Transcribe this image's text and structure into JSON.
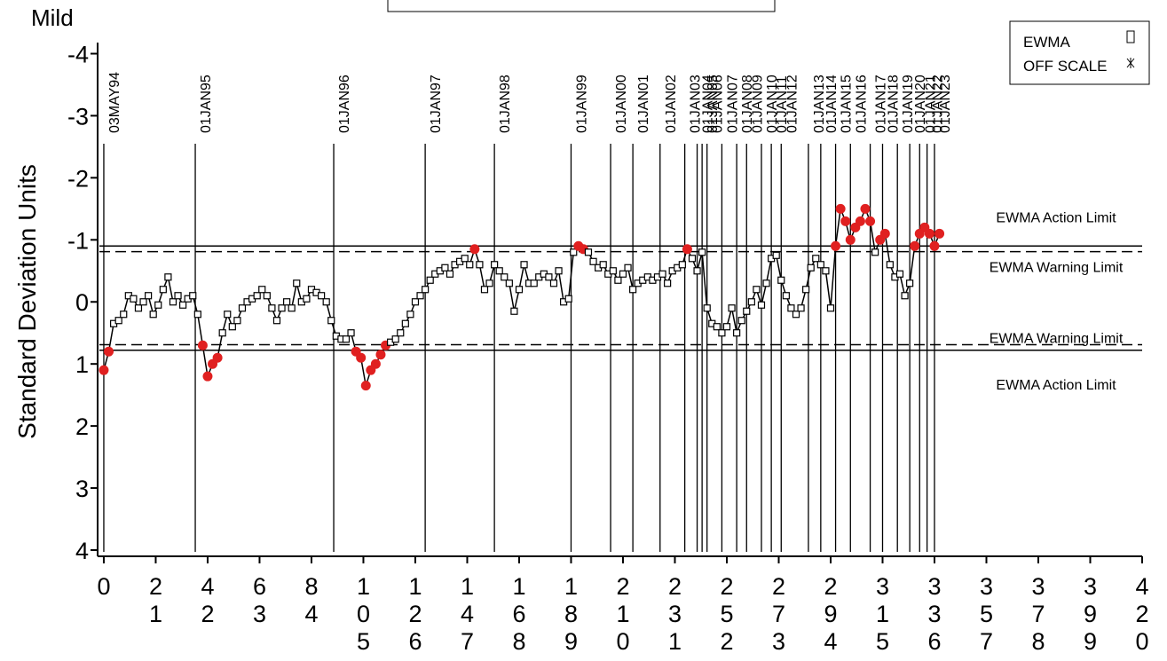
{
  "chart_data": {
    "type": "line",
    "title": "Mild",
    "ylabel": "Standard Deviation Units",
    "xlim": [
      -2.5,
      420
    ],
    "ylim": [
      -4.15,
      4.1
    ],
    "xticks": [
      0,
      21,
      42,
      63,
      84,
      105,
      126,
      147,
      168,
      189,
      210,
      231,
      252,
      273,
      294,
      315,
      336,
      357,
      378,
      399,
      420
    ],
    "yticks": [
      -4,
      -3,
      -2,
      -1,
      0,
      1,
      2,
      3,
      4
    ],
    "x": [
      0,
      2,
      4,
      6,
      8,
      10,
      12,
      14,
      16,
      18,
      20,
      22,
      24,
      26,
      28,
      30,
      32,
      34,
      36,
      38,
      40,
      42,
      44,
      46,
      48,
      50,
      52,
      54,
      56,
      58,
      60,
      62,
      64,
      66,
      68,
      70,
      72,
      74,
      76,
      78,
      80,
      82,
      84,
      86,
      88,
      90,
      92,
      94,
      96,
      98,
      100,
      102,
      104,
      106,
      108,
      110,
      112,
      114,
      116,
      118,
      120,
      122,
      124,
      126,
      128,
      130,
      132,
      134,
      136,
      138,
      140,
      142,
      144,
      146,
      148,
      150,
      152,
      154,
      156,
      158,
      160,
      162,
      164,
      166,
      168,
      170,
      172,
      174,
      176,
      178,
      180,
      182,
      184,
      186,
      188,
      190,
      192,
      194,
      196,
      198,
      200,
      202,
      204,
      206,
      208,
      210,
      212,
      214,
      216,
      218,
      220,
      222,
      224,
      226,
      228,
      230,
      232,
      234,
      236,
      238,
      240,
      242,
      244,
      246,
      248,
      250,
      252,
      254,
      256,
      258,
      260,
      262,
      264,
      266,
      268,
      270,
      272,
      274,
      276,
      278,
      280,
      282,
      284,
      286,
      288,
      290,
      292,
      294,
      296,
      298,
      300,
      302,
      304,
      306,
      308,
      310,
      312,
      314,
      316,
      318,
      320,
      322,
      324,
      326,
      328,
      330,
      332,
      334,
      336,
      338
    ],
    "series": [
      {
        "name": "EWMA",
        "color": "#000000",
        "highlight_color": "#e02020",
        "values": [
          1.1,
          0.8,
          0.35,
          0.3,
          0.2,
          -0.1,
          -0.05,
          0.1,
          0.0,
          -0.1,
          0.2,
          0.05,
          -0.2,
          -0.4,
          0.0,
          -0.1,
          0.05,
          -0.05,
          -0.1,
          0.2,
          0.7,
          1.2,
          1.0,
          0.9,
          0.5,
          0.2,
          0.4,
          0.3,
          0.1,
          0.0,
          -0.05,
          -0.1,
          -0.2,
          -0.1,
          0.1,
          0.3,
          0.1,
          0.0,
          0.1,
          -0.3,
          0.0,
          -0.05,
          -0.2,
          -0.15,
          -0.1,
          0.0,
          0.3,
          0.55,
          0.6,
          0.6,
          0.5,
          0.8,
          0.9,
          1.35,
          1.1,
          1.0,
          0.85,
          0.7,
          0.65,
          0.6,
          0.5,
          0.35,
          0.2,
          0.0,
          -0.1,
          -0.2,
          -0.35,
          -0.45,
          -0.5,
          -0.55,
          -0.45,
          -0.6,
          -0.65,
          -0.7,
          -0.6,
          -0.85,
          -0.6,
          -0.2,
          -0.3,
          -0.6,
          -0.5,
          -0.4,
          -0.3,
          0.15,
          -0.2,
          -0.6,
          -0.3,
          -0.3,
          -0.4,
          -0.45,
          -0.4,
          -0.3,
          -0.5,
          0.0,
          -0.05,
          -0.8,
          -0.9,
          -0.85,
          -0.8,
          -0.65,
          -0.55,
          -0.6,
          -0.45,
          -0.5,
          -0.35,
          -0.45,
          -0.55,
          -0.2,
          -0.3,
          -0.35,
          -0.4,
          -0.35,
          -0.4,
          -0.45,
          -0.3,
          -0.5,
          -0.55,
          -0.6,
          -0.85,
          -0.7,
          -0.5,
          -0.8,
          0.1,
          0.35,
          0.4,
          0.5,
          0.4,
          0.1,
          0.5,
          0.3,
          0.15,
          0.0,
          -0.2,
          0.05,
          -0.3,
          -0.7,
          -0.75,
          -0.35,
          -0.1,
          0.1,
          0.2,
          0.1,
          -0.2,
          -0.55,
          -0.7,
          -0.6,
          -0.5,
          0.1,
          -0.9,
          -1.5,
          -1.3,
          -1.0,
          -1.2,
          -1.3,
          -1.5,
          -1.3,
          -0.8,
          -1.0,
          -1.1,
          -0.6,
          -0.4,
          -0.45,
          -0.1,
          -0.3,
          -0.9,
          -1.1,
          -1.2,
          -1.1,
          -0.9,
          -1.1
        ]
      }
    ],
    "limits": [
      {
        "label": "EWMA Action Limit",
        "value": -0.9,
        "style": "solid"
      },
      {
        "label": "EWMA Warning Limit",
        "value": -0.81,
        "style": "dashed"
      },
      {
        "label": "EWMA Warning Limit",
        "value": 0.69,
        "style": "dashed"
      },
      {
        "label": "EWMA Action Limit",
        "value": 0.78,
        "style": "solid"
      }
    ],
    "reference_lines": [
      {
        "x": 0,
        "label": "03MAY94"
      },
      {
        "x": 37,
        "label": "01JAN95"
      },
      {
        "x": 93,
        "label": "01JAN96"
      },
      {
        "x": 130,
        "label": "01JAN97"
      },
      {
        "x": 158,
        "label": "01JAN98"
      },
      {
        "x": 189,
        "label": "01JAN99"
      },
      {
        "x": 205,
        "label": "01JAN00"
      },
      {
        "x": 214,
        "label": "01JAN01"
      },
      {
        "x": 225,
        "label": "01JAN02"
      },
      {
        "x": 235,
        "label": "01JAN03"
      },
      {
        "x": 240,
        "label": "01JAN04"
      },
      {
        "x": 242,
        "label": "01JAN05"
      },
      {
        "x": 244,
        "label": "01JAN06"
      },
      {
        "x": 250,
        "label": "01JAN07"
      },
      {
        "x": 256,
        "label": "01JAN08"
      },
      {
        "x": 260,
        "label": "01JAN09"
      },
      {
        "x": 266,
        "label": "01JAN10"
      },
      {
        "x": 270,
        "label": "01JAN11"
      },
      {
        "x": 274,
        "label": "01JAN12"
      },
      {
        "x": 285,
        "label": "01JAN13"
      },
      {
        "x": 290,
        "label": "01JAN14"
      },
      {
        "x": 296,
        "label": "01JAN15"
      },
      {
        "x": 302,
        "label": "01JAN16"
      },
      {
        "x": 310,
        "label": "01JAN17"
      },
      {
        "x": 315,
        "label": "01JAN18"
      },
      {
        "x": 321,
        "label": "01JAN19"
      },
      {
        "x": 326,
        "label": "01JAN20"
      },
      {
        "x": 330,
        "label": "01JAN21"
      },
      {
        "x": 333,
        "label": "01JAN22"
      },
      {
        "x": 336,
        "label": "01JAN23"
      }
    ],
    "legend_entries": [
      "EWMA",
      "OFF SCALE"
    ],
    "legend_position": "top-right"
  }
}
